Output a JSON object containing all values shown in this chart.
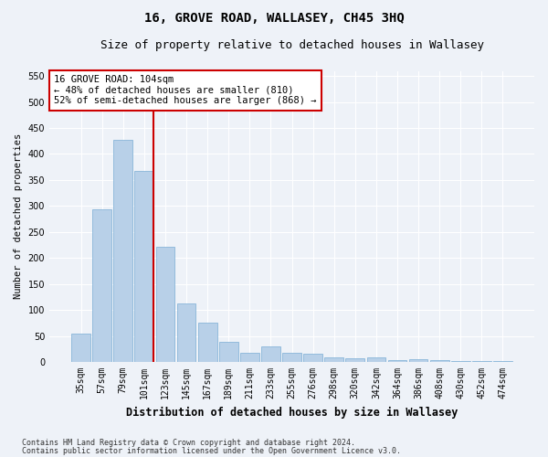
{
  "title": "16, GROVE ROAD, WALLASEY, CH45 3HQ",
  "subtitle": "Size of property relative to detached houses in Wallasey",
  "xlabel": "Distribution of detached houses by size in Wallasey",
  "ylabel": "Number of detached properties",
  "categories": [
    "35sqm",
    "57sqm",
    "79sqm",
    "101sqm",
    "123sqm",
    "145sqm",
    "167sqm",
    "189sqm",
    "211sqm",
    "233sqm",
    "255sqm",
    "276sqm",
    "298sqm",
    "320sqm",
    "342sqm",
    "364sqm",
    "386sqm",
    "408sqm",
    "430sqm",
    "452sqm",
    "474sqm"
  ],
  "values": [
    55,
    293,
    428,
    368,
    222,
    112,
    75,
    38,
    18,
    29,
    17,
    15,
    8,
    7,
    8,
    3,
    5,
    4,
    2,
    1,
    2
  ],
  "bar_color": "#b8d0e8",
  "bar_edge_color": "#7aadd4",
  "vline_color": "#cc0000",
  "annotation_text": "16 GROVE ROAD: 104sqm\n← 48% of detached houses are smaller (810)\n52% of semi-detached houses are larger (868) →",
  "annotation_box_color": "#ffffff",
  "annotation_box_edge_color": "#cc0000",
  "ylim": [
    0,
    560
  ],
  "yticks": [
    0,
    50,
    100,
    150,
    200,
    250,
    300,
    350,
    400,
    450,
    500,
    550
  ],
  "background_color": "#eef2f8",
  "plot_bg_color": "#eef2f8",
  "grid_color": "#ffffff",
  "footer_line1": "Contains HM Land Registry data © Crown copyright and database right 2024.",
  "footer_line2": "Contains public sector information licensed under the Open Government Licence v3.0.",
  "title_fontsize": 10,
  "subtitle_fontsize": 9,
  "xlabel_fontsize": 8.5,
  "ylabel_fontsize": 7.5,
  "tick_fontsize": 7,
  "annotation_fontsize": 7.5
}
